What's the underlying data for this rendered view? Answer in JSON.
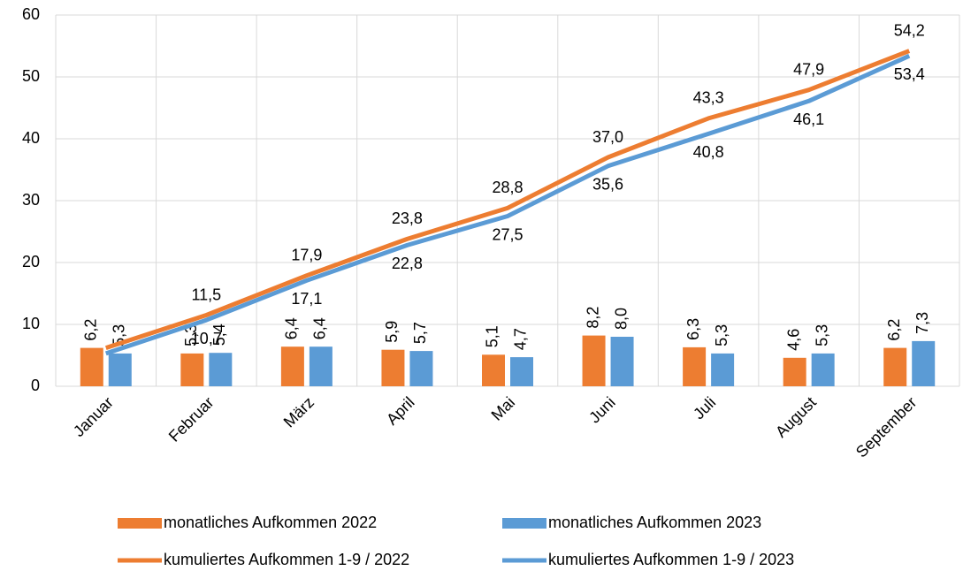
{
  "chart_data": {
    "type": "combo",
    "categories": [
      "Januar",
      "Februar",
      "März",
      "April",
      "Mai",
      "Juni",
      "Juli",
      "August",
      "September"
    ],
    "ylim": [
      0,
      60
    ],
    "yticks": [
      0,
      10,
      20,
      30,
      40,
      50,
      60
    ],
    "grid": true,
    "series": [
      {
        "name": "monatliches Aufkommen 2022",
        "type": "bar",
        "color": "#ed7d31",
        "values": [
          6.2,
          5.3,
          6.4,
          5.9,
          5.1,
          8.2,
          6.3,
          4.6,
          6.2
        ],
        "value_labels": [
          "6,2",
          "5,3",
          "6,4",
          "5,9",
          "5,1",
          "8,2",
          "6,3",
          "4,6",
          "6,2"
        ]
      },
      {
        "name": "monatliches Aufkommen 2023",
        "type": "bar",
        "color": "#5b9bd5",
        "values": [
          5.3,
          5.4,
          6.4,
          5.7,
          4.7,
          8.0,
          5.3,
          5.3,
          7.3
        ],
        "value_labels": [
          "5,3",
          "5,4",
          "6,4",
          "5,7",
          "4,7",
          "8,0",
          "5,3",
          "5,3",
          "7,3"
        ]
      },
      {
        "name": "kumuliertes Aufkommen 1-9 / 2022",
        "type": "line",
        "color": "#ed7d31",
        "values": [
          6.2,
          11.5,
          17.9,
          23.8,
          28.8,
          37.0,
          43.3,
          47.9,
          54.2
        ],
        "value_labels": [
          null,
          "11,5",
          "17,9",
          "23,8",
          "28,8",
          "37,0",
          "43,3",
          "47,9",
          "54,2"
        ]
      },
      {
        "name": "kumuliertes Aufkommen 1-9 / 2023",
        "type": "line",
        "color": "#5b9bd5",
        "values": [
          5.3,
          10.7,
          17.1,
          22.8,
          27.5,
          35.6,
          40.8,
          46.1,
          53.4
        ],
        "value_labels": [
          null,
          "10,7",
          "17,1",
          "22,8",
          "27,5",
          "35,6",
          "40,8",
          "46,1",
          "53,4"
        ]
      }
    ]
  }
}
